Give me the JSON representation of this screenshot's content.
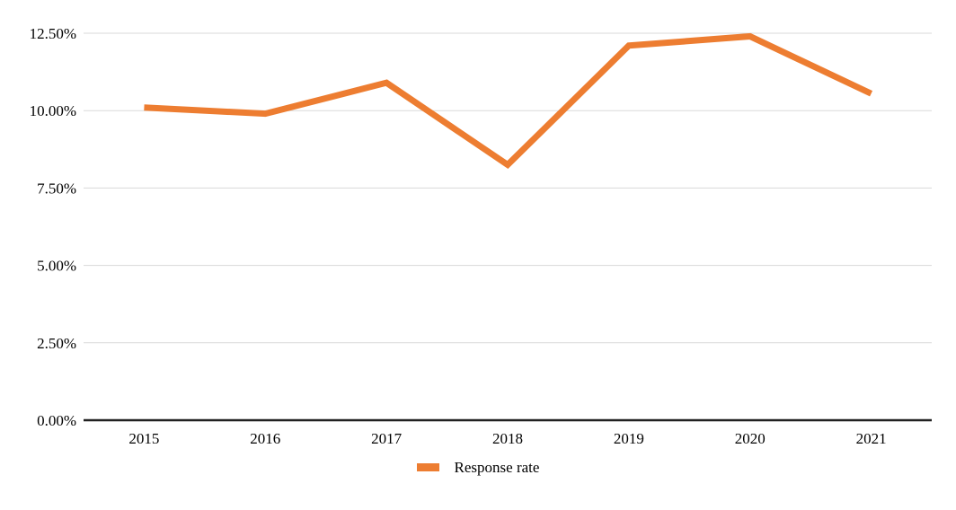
{
  "chart_data": {
    "type": "line",
    "title": "",
    "xlabel": "",
    "ylabel": "",
    "categories": [
      "2015",
      "2016",
      "2017",
      "2018",
      "2019",
      "2020",
      "2021"
    ],
    "series": [
      {
        "name": "Response rate",
        "color": "#ED7D31",
        "values": [
          10.1,
          9.9,
          10.9,
          8.25,
          12.1,
          12.4,
          10.55
        ]
      }
    ],
    "ylim": [
      0,
      12.5
    ],
    "yticks": [
      0,
      2.5,
      5,
      7.5,
      10,
      12.5
    ],
    "ytick_labels": [
      "0.00%",
      "2.50%",
      "5.00%",
      "7.50%",
      "10.00%",
      "12.50%"
    ],
    "grid": true,
    "legend_position": "bottom-center",
    "colors": {
      "gridline": "#D9D9D9",
      "axis_line": "#212121",
      "text": "#000000",
      "background": "#FFFFFF"
    }
  }
}
